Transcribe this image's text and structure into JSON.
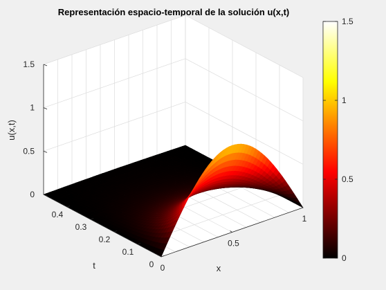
{
  "chart_data": {
    "type": "surface",
    "title": "Representación espacio-temporal de la solución u(x,t)",
    "xlabel": "x",
    "ylabel": "t",
    "zlabel": "u(x,t)",
    "xlim": [
      0,
      1
    ],
    "ylim": [
      0,
      0.5
    ],
    "zlim": [
      0,
      1.5
    ],
    "x_ticks": [
      "0",
      "0.5",
      "1"
    ],
    "y_ticks": [
      "0",
      "0.1",
      "0.2",
      "0.3",
      "0.4"
    ],
    "z_ticks": [
      "0",
      "0.5",
      "1",
      "1.5"
    ],
    "function": "u(x,t) = exp(-pi^2 t) sin(pi x)",
    "peak_value": 1,
    "grid": true,
    "colormap": "hot",
    "colorbar": {
      "range": [
        0,
        1.5
      ],
      "ticks": [
        "0",
        "0.5",
        "1",
        "1.5"
      ],
      "placement": "right"
    }
  }
}
